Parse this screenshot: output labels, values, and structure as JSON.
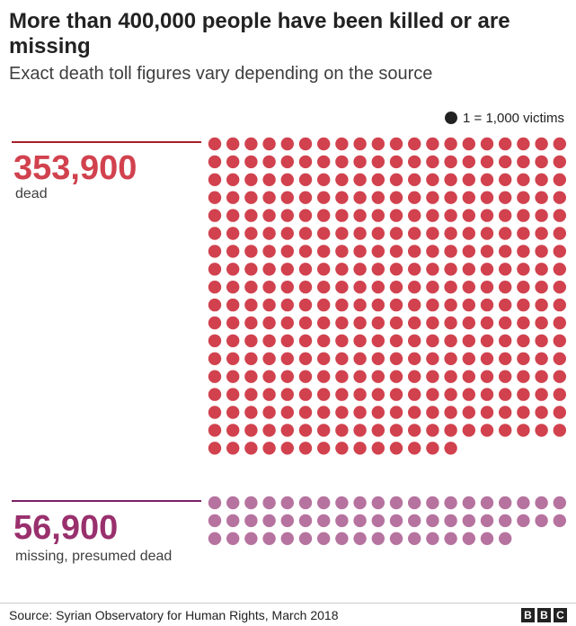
{
  "chart_data": {
    "type": "dot-matrix",
    "title": "More than 400,000 people have been killed or are missing",
    "subtitle": "Exact death toll figures vary depending on the source",
    "legend": {
      "symbol_label": "1 = 1,000 victims",
      "unit_value": 1000,
      "color": "#222222"
    },
    "groups": [
      {
        "value_label": "353,900",
        "label": "dead",
        "value": 353900,
        "dots": 354,
        "color": "#d1424e"
      },
      {
        "value_label": "56,900",
        "label": "missing, presumed dead",
        "value": 56900,
        "dots": 57,
        "color": "#b6739f"
      }
    ],
    "columns_per_row": 20
  },
  "colors": {
    "dead": "#d1424e",
    "missing": "#b6739f",
    "dead_rule": "#a71d28",
    "missing_rule": "#7b2065"
  },
  "footer": {
    "source": "Source: Syrian Observatory for Human Rights, March 2018",
    "logo": [
      "B",
      "B",
      "C"
    ]
  }
}
